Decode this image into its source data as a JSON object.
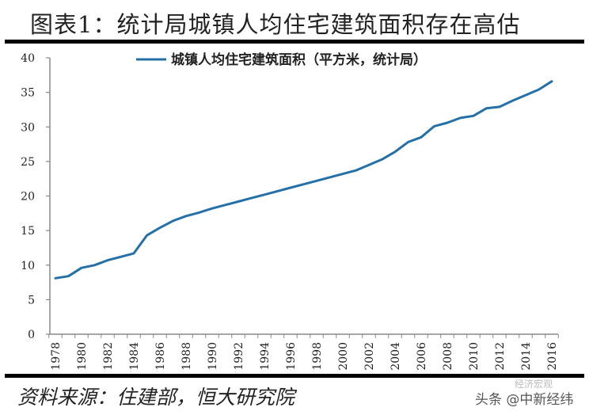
{
  "header": {
    "title": "图表1：统计局城镇人均住宅建筑面积存在高估"
  },
  "footer": {
    "source": "资料来源：住建部，恒大研究院",
    "watermark": "头条 @中新经纬",
    "watermark_faint": "经济宏观"
  },
  "colors": {
    "line": "#2470A8",
    "axis": "#888888",
    "text": "#222222"
  },
  "chart_data": {
    "type": "line",
    "title": "图表1：统计局城镇人均住宅建筑面积存在高估",
    "xlabel": "",
    "ylabel": "",
    "ylim": [
      0,
      40
    ],
    "yticks": [
      0,
      5,
      10,
      15,
      20,
      25,
      30,
      35,
      40
    ],
    "x": [
      1978,
      1979,
      1980,
      1981,
      1982,
      1983,
      1984,
      1985,
      1986,
      1987,
      1988,
      1989,
      1990,
      1991,
      1992,
      1993,
      1994,
      1995,
      1996,
      1997,
      1998,
      1999,
      2000,
      2001,
      2002,
      2003,
      2004,
      2005,
      2006,
      2007,
      2008,
      2009,
      2010,
      2011,
      2012,
      2013,
      2014,
      2015,
      2016
    ],
    "xtick_labels": [
      "1978",
      "1980",
      "1982",
      "1984",
      "1986",
      "1988",
      "1990",
      "1992",
      "1994",
      "1996",
      "1998",
      "2000",
      "2002",
      "2004",
      "2006",
      "2008",
      "2010",
      "2012",
      "2014",
      "2016"
    ],
    "series": [
      {
        "name": "城镇人均住宅建筑面积（平方米，统计局）",
        "values": [
          8.1,
          8.4,
          9.6,
          10.0,
          10.7,
          11.2,
          11.7,
          14.3,
          15.4,
          16.4,
          17.1,
          17.6,
          18.2,
          18.7,
          19.2,
          19.7,
          20.2,
          20.7,
          21.2,
          21.7,
          22.2,
          22.7,
          23.2,
          23.7,
          24.5,
          25.3,
          26.4,
          27.8,
          28.5,
          30.1,
          30.6,
          31.3,
          31.6,
          32.7,
          32.9,
          33.8,
          34.6,
          35.4,
          36.6
        ]
      }
    ],
    "grid": false,
    "legend_position": "top"
  }
}
